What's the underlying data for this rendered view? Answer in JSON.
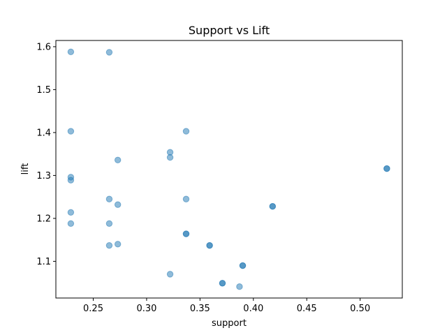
{
  "chart_data": {
    "type": "scatter",
    "title": "Support vs Lift",
    "xlabel": "support",
    "ylabel": "lift",
    "xlim": [
      0.215,
      0.5395
    ],
    "ylim": [
      1.0145,
      1.6145
    ],
    "xticks": [
      0.25,
      0.3,
      0.35,
      0.4,
      0.45,
      0.5
    ],
    "xtick_labels": [
      "0.25",
      "0.30",
      "0.35",
      "0.40",
      "0.45",
      "0.50"
    ],
    "yticks": [
      1.1,
      1.2,
      1.3,
      1.4,
      1.5,
      1.6
    ],
    "ytick_labels": [
      "1.1",
      "1.2",
      "1.3",
      "1.4",
      "1.5",
      "1.6"
    ],
    "grid": false,
    "marker_color": "#1f77b4",
    "marker_alpha": 0.5,
    "points": [
      {
        "x": 0.229,
        "y": 1.588
      },
      {
        "x": 0.229,
        "y": 1.403
      },
      {
        "x": 0.229,
        "y": 1.296
      },
      {
        "x": 0.229,
        "y": 1.289
      },
      {
        "x": 0.229,
        "y": 1.214
      },
      {
        "x": 0.229,
        "y": 1.188
      },
      {
        "x": 0.265,
        "y": 1.587
      },
      {
        "x": 0.265,
        "y": 1.245
      },
      {
        "x": 0.265,
        "y": 1.188
      },
      {
        "x": 0.265,
        "y": 1.137
      },
      {
        "x": 0.273,
        "y": 1.336
      },
      {
        "x": 0.273,
        "y": 1.232
      },
      {
        "x": 0.273,
        "y": 1.14
      },
      {
        "x": 0.322,
        "y": 1.354
      },
      {
        "x": 0.322,
        "y": 1.342
      },
      {
        "x": 0.322,
        "y": 1.07
      },
      {
        "x": 0.337,
        "y": 1.403
      },
      {
        "x": 0.337,
        "y": 1.245
      },
      {
        "x": 0.337,
        "y": 1.164
      },
      {
        "x": 0.337,
        "y": 1.164
      },
      {
        "x": 0.359,
        "y": 1.137
      },
      {
        "x": 0.359,
        "y": 1.137
      },
      {
        "x": 0.371,
        "y": 1.049
      },
      {
        "x": 0.371,
        "y": 1.049
      },
      {
        "x": 0.387,
        "y": 1.041
      },
      {
        "x": 0.39,
        "y": 1.09
      },
      {
        "x": 0.39,
        "y": 1.09
      },
      {
        "x": 0.418,
        "y": 1.228
      },
      {
        "x": 0.418,
        "y": 1.228
      },
      {
        "x": 0.525,
        "y": 1.316
      },
      {
        "x": 0.525,
        "y": 1.316
      }
    ]
  }
}
